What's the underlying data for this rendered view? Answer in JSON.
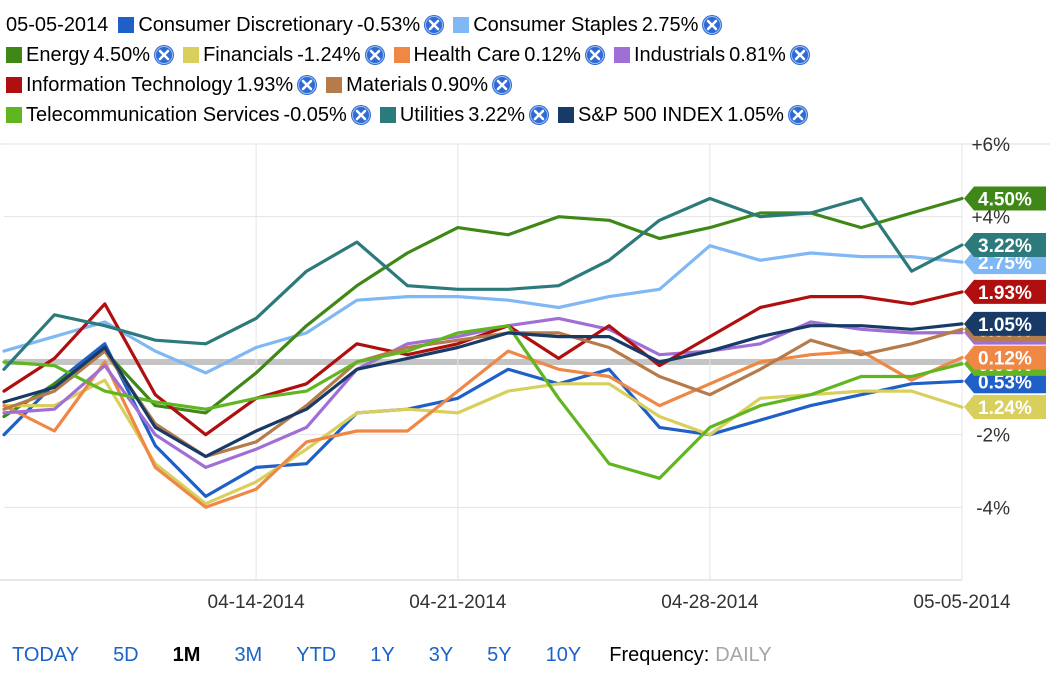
{
  "legend": {
    "date": "05-05-2014",
    "rows": [
      [
        {
          "name": "Consumer Discretionary",
          "change": "-0.53%",
          "color": "#1f5fc8"
        },
        {
          "name": "Consumer Staples",
          "change": "2.75%",
          "color": "#80b8f5"
        }
      ],
      [
        {
          "name": "Energy",
          "change": "4.50%",
          "color": "#3f8717"
        },
        {
          "name": "Financials",
          "change": "-1.24%",
          "color": "#d8cf5c"
        },
        {
          "name": "Health Care",
          "change": "0.12%",
          "color": "#ef8745"
        },
        {
          "name": "Industrials",
          "change": "0.81%",
          "color": "#a06fd5"
        }
      ],
      [
        {
          "name": "Information Technology",
          "change": "1.93%",
          "color": "#b00f0f"
        },
        {
          "name": "Materials",
          "change": "0.90%",
          "color": "#b57b4b"
        }
      ],
      [
        {
          "name": "Telecommunication Services",
          "change": "-0.05%",
          "color": "#61b521"
        },
        {
          "name": "Utilities",
          "change": "3.22%",
          "color": "#2c7a7b"
        },
        {
          "name": "S&P 500 INDEX",
          "change": "1.05%",
          "color": "#173a66"
        }
      ]
    ]
  },
  "range_buttons": [
    {
      "label": "TODAY",
      "active": false
    },
    {
      "label": "5D",
      "active": false
    },
    {
      "label": "1M",
      "active": true
    },
    {
      "label": "3M",
      "active": false
    },
    {
      "label": "YTD",
      "active": false
    },
    {
      "label": "1Y",
      "active": false
    },
    {
      "label": "3Y",
      "active": false
    },
    {
      "label": "5Y",
      "active": false
    },
    {
      "label": "10Y",
      "active": false
    }
  ],
  "frequency": {
    "label": "Frequency:",
    "value": "DAILY"
  },
  "chart_data": {
    "type": "line",
    "x": [
      "04-07-2014",
      "04-08-2014",
      "04-09-2014",
      "04-10-2014",
      "04-11-2014",
      "04-14-2014",
      "04-15-2014",
      "04-16-2014",
      "04-17-2014",
      "04-21-2014",
      "04-22-2014",
      "04-23-2014",
      "04-24-2014",
      "04-25-2014",
      "04-28-2014",
      "04-29-2014",
      "04-30-2014",
      "05-01-2014",
      "05-02-2014",
      "05-05-2014"
    ],
    "x_tick_labels": [
      "04-14-2014",
      "04-21-2014",
      "04-28-2014",
      "05-05-2014"
    ],
    "y_tick_labels": [
      "+6%",
      "+4%",
      "-2%",
      "-4%"
    ],
    "ylim": [
      -6,
      6
    ],
    "grid": true,
    "legend_position": "top",
    "series": [
      {
        "name": "Consumer Discretionary",
        "color": "#1f5fc8",
        "end_label": "-0.53%",
        "values": [
          -2.0,
          -0.6,
          0.5,
          -2.3,
          -3.7,
          -2.9,
          -2.8,
          -1.4,
          -1.3,
          -1.0,
          -0.2,
          -0.6,
          -0.2,
          -1.8,
          -2.0,
          -1.6,
          -1.2,
          -0.9,
          -0.6,
          -0.53
        ]
      },
      {
        "name": "Consumer Staples",
        "color": "#80b8f5",
        "end_label": "2.75%",
        "values": [
          0.3,
          0.7,
          1.1,
          0.3,
          -0.3,
          0.4,
          0.8,
          1.7,
          1.8,
          1.8,
          1.7,
          1.5,
          1.8,
          2.0,
          3.2,
          2.8,
          3.0,
          2.9,
          2.9,
          2.75
        ]
      },
      {
        "name": "Energy",
        "color": "#3f8717",
        "end_label": "4.50%",
        "values": [
          -1.5,
          -0.6,
          0.3,
          -1.2,
          -1.4,
          -0.3,
          1.0,
          2.1,
          3.0,
          3.7,
          3.5,
          4.0,
          3.9,
          3.4,
          3.7,
          4.1,
          4.1,
          3.7,
          4.1,
          4.5
        ]
      },
      {
        "name": "Financials",
        "color": "#d8cf5c",
        "end_label": "-1.24%",
        "values": [
          -1.2,
          -1.2,
          -0.5,
          -2.8,
          -3.9,
          -3.3,
          -2.4,
          -1.4,
          -1.3,
          -1.4,
          -0.8,
          -0.6,
          -0.6,
          -1.5,
          -2.0,
          -1.0,
          -0.9,
          -0.8,
          -0.8,
          -1.24
        ]
      },
      {
        "name": "Health Care",
        "color": "#ef8745",
        "end_label": "0.12%",
        "values": [
          -1.2,
          -1.9,
          0.0,
          -2.9,
          -4.0,
          -3.5,
          -2.2,
          -1.9,
          -1.9,
          -0.8,
          0.3,
          -0.2,
          -0.4,
          -1.2,
          -0.6,
          0.0,
          0.2,
          0.3,
          -0.5,
          0.12
        ]
      },
      {
        "name": "Industrials",
        "color": "#a06fd5",
        "end_label": "0.81%",
        "values": [
          -1.4,
          -1.3,
          -0.1,
          -2.0,
          -2.9,
          -2.4,
          -1.8,
          -0.2,
          0.5,
          0.7,
          1.0,
          1.2,
          0.9,
          0.2,
          0.3,
          0.5,
          1.1,
          0.9,
          0.8,
          0.81
        ]
      },
      {
        "name": "Information Technology",
        "color": "#b00f0f",
        "end_label": "1.93%",
        "values": [
          -0.8,
          0.1,
          1.6,
          -0.9,
          -2.0,
          -1.0,
          -0.6,
          0.5,
          0.2,
          0.5,
          1.0,
          0.1,
          1.0,
          -0.1,
          0.7,
          1.5,
          1.8,
          1.8,
          1.6,
          1.93
        ]
      },
      {
        "name": "Materials",
        "color": "#b57b4b",
        "end_label": "0.90%",
        "values": [
          -1.3,
          -0.8,
          0.3,
          -1.7,
          -2.6,
          -2.2,
          -1.2,
          0.0,
          0.4,
          0.6,
          0.8,
          0.8,
          0.4,
          -0.4,
          -0.9,
          -0.2,
          0.6,
          0.2,
          0.5,
          0.9
        ]
      },
      {
        "name": "Telecommunication Services",
        "color": "#61b521",
        "end_label": "-0.05%",
        "values": [
          0.0,
          -0.1,
          -0.8,
          -1.1,
          -1.3,
          -1.0,
          -0.8,
          0.0,
          0.3,
          0.8,
          1.0,
          -1.0,
          -2.8,
          -3.2,
          -1.8,
          -1.2,
          -0.9,
          -0.4,
          -0.4,
          -0.05
        ]
      },
      {
        "name": "Utilities",
        "color": "#2c7a7b",
        "end_label": "3.22%",
        "values": [
          -0.2,
          1.3,
          1.0,
          0.6,
          0.5,
          1.2,
          2.5,
          3.3,
          2.1,
          2.0,
          2.0,
          2.1,
          2.8,
          3.9,
          4.5,
          4.0,
          4.1,
          4.5,
          2.5,
          3.22
        ]
      },
      {
        "name": "S&P 500 INDEX",
        "color": "#173a66",
        "end_label": "1.05%",
        "values": [
          -1.1,
          -0.7,
          0.4,
          -1.8,
          -2.6,
          -1.9,
          -1.3,
          -0.2,
          0.1,
          0.4,
          0.8,
          0.7,
          0.7,
          0.0,
          0.3,
          0.7,
          1.0,
          1.0,
          0.9,
          1.05
        ]
      }
    ]
  }
}
